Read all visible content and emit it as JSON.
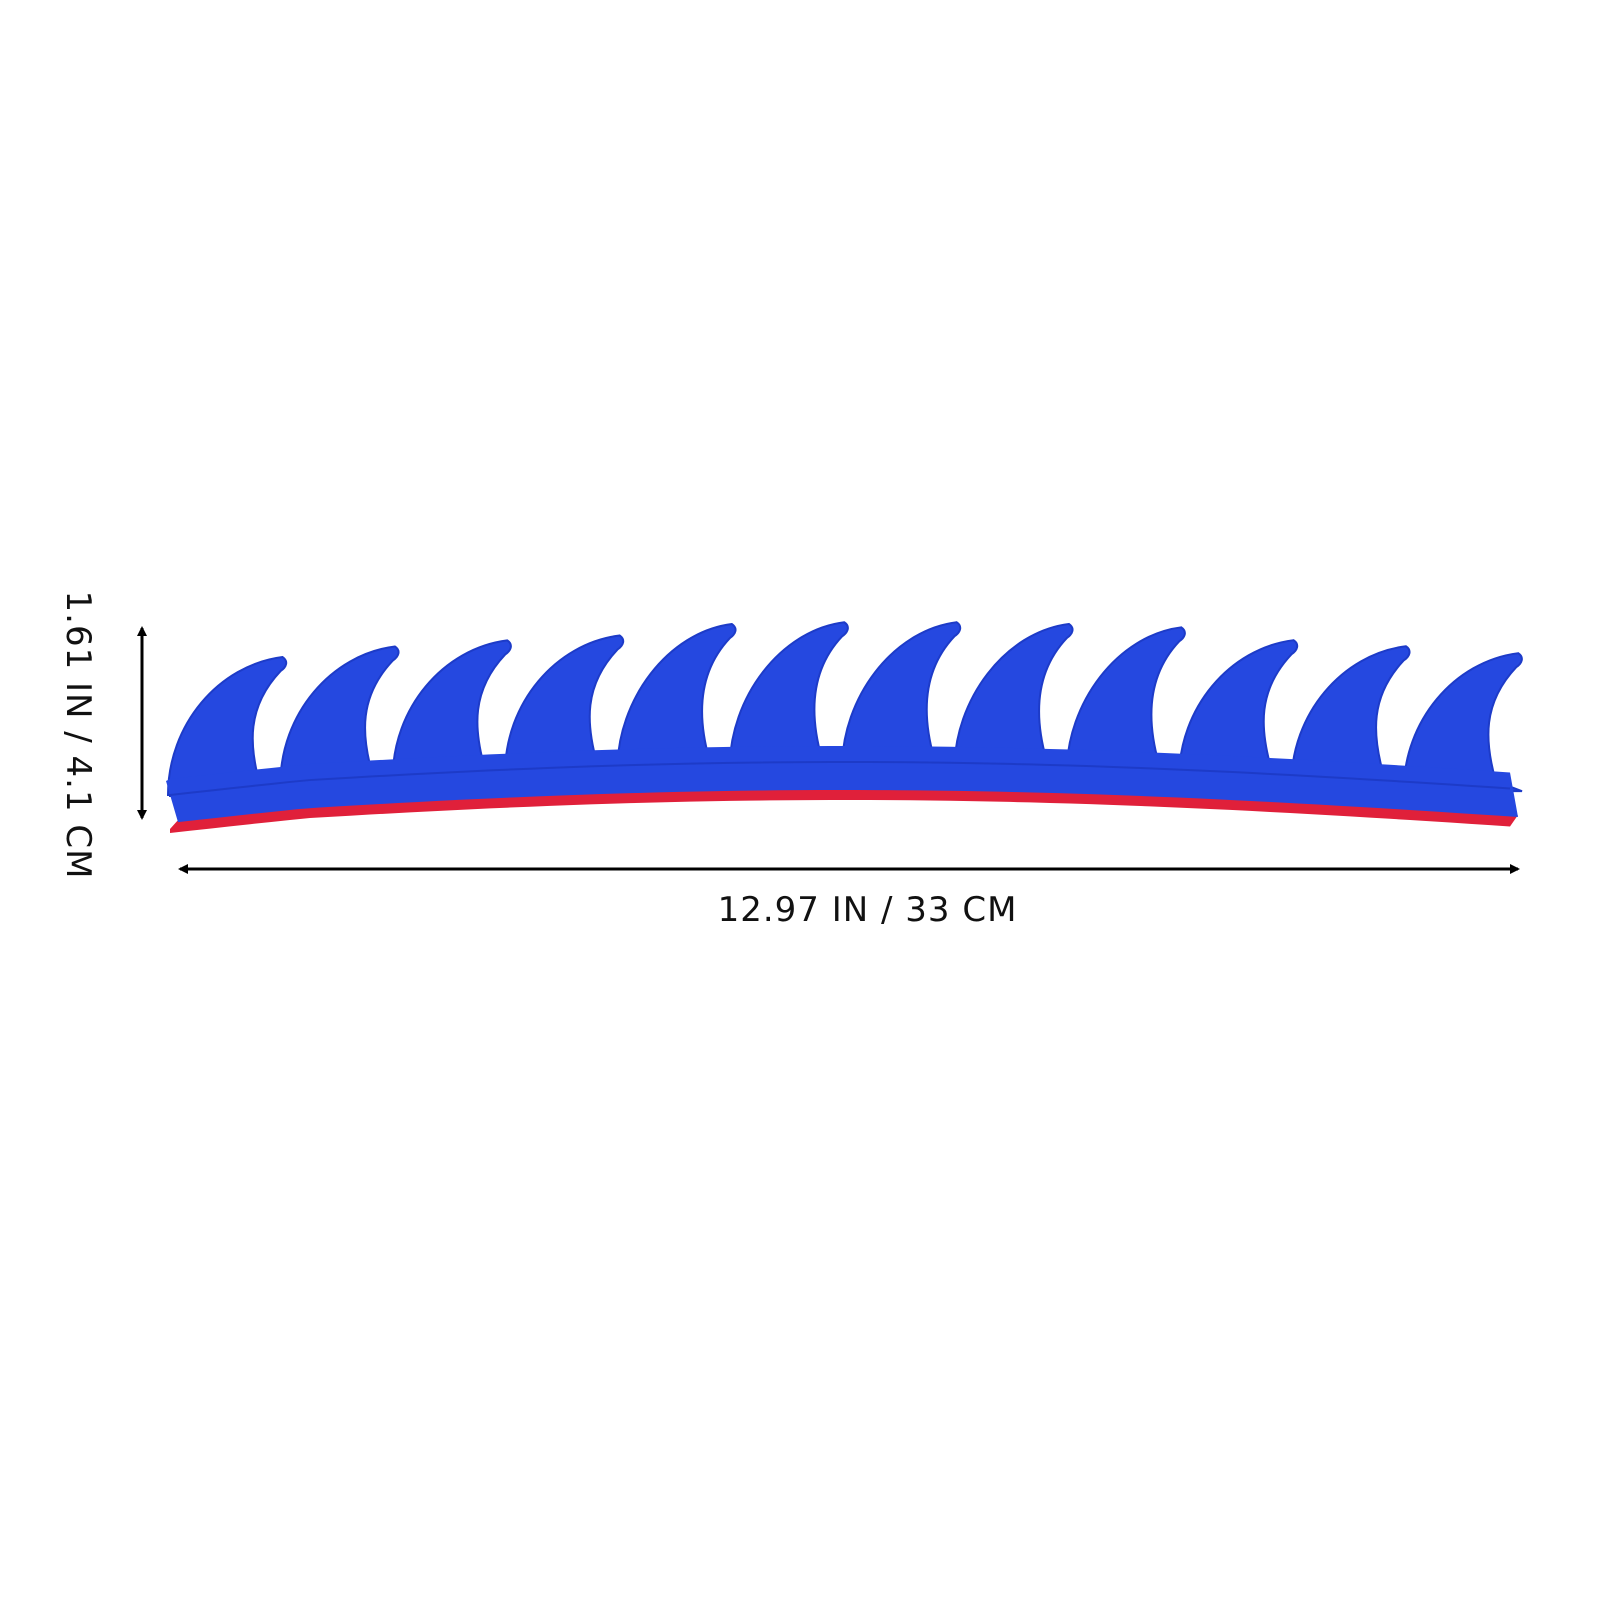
{
  "dimensions": {
    "width_label": "12.97 IN / 33 CM",
    "height_label": "1.61 IN / 4.1 CM"
  },
  "product": {
    "fin_count": 12,
    "colors": {
      "fin": "#2548e0",
      "fin_shade": "#1d3bc8",
      "adhesive": "#e0203a",
      "arrow": "#000000"
    }
  }
}
